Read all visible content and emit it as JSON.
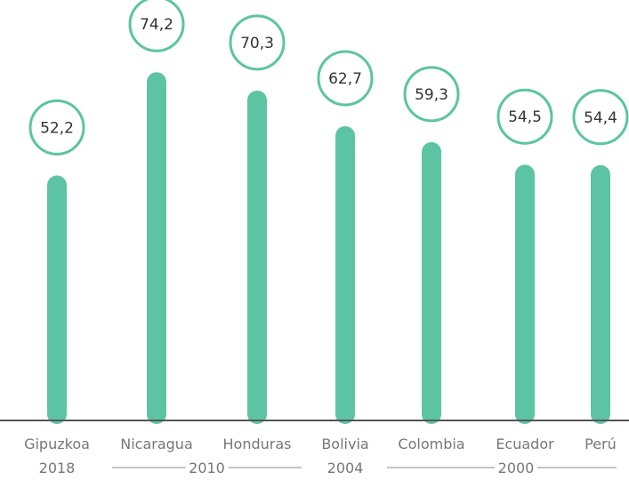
{
  "chart_data": {
    "type": "bar",
    "categories": [
      "Gipuzkoa",
      "Nicaragua",
      "Honduras",
      "Bolivia",
      "Colombia",
      "Ecuador",
      "Perú"
    ],
    "values": [
      52.2,
      74.2,
      70.3,
      62.7,
      59.3,
      54.5,
      54.4
    ],
    "value_labels": [
      "52,2",
      "74,2",
      "70,3",
      "62,7",
      "59,3",
      "54,5",
      "54,4"
    ],
    "groups": [
      {
        "label": "2018",
        "categories": [
          "Gipuzkoa"
        ]
      },
      {
        "label": "2010",
        "categories": [
          "Nicaragua",
          "Honduras"
        ]
      },
      {
        "label": "2004",
        "categories": [
          "Bolivia"
        ]
      },
      {
        "label": "2000",
        "categories": [
          "Colombia",
          "Ecuador",
          "Perú"
        ]
      }
    ],
    "title": "",
    "xlabel": "",
    "ylabel": "",
    "grid": false,
    "legend": "none",
    "colors": {
      "bar": "#5cc4a3",
      "bubble_stroke": "#5cc4a3",
      "axis": "#555555",
      "text": "#777777"
    }
  }
}
